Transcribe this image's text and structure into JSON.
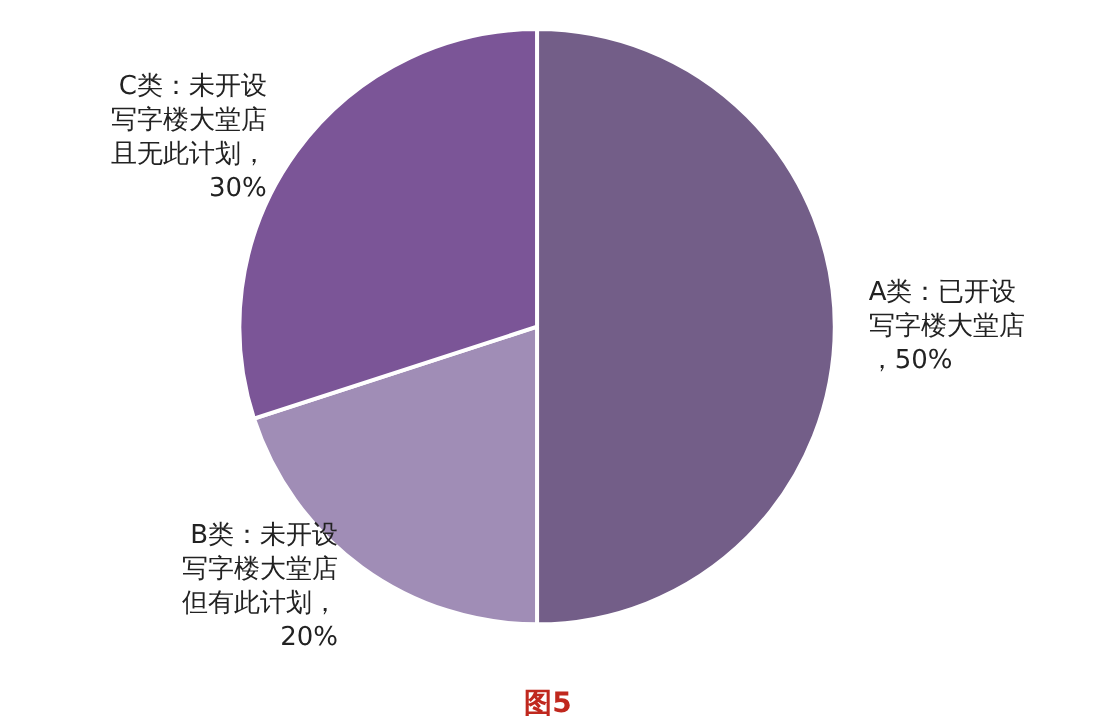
{
  "chart_data": {
    "type": "pie",
    "categories": [
      "A类：已开设写字楼大堂店",
      "B类：未开设写字楼大堂店但有此计划",
      "C类：未开设写字楼大堂店且无此计划"
    ],
    "values": [
      50,
      20,
      30
    ],
    "value_labels": [
      "，50%",
      "，20%",
      "，30%"
    ],
    "colors": [
      "#735e88",
      "#a08db6",
      "#7b5597"
    ],
    "annotations": [
      "图5"
    ]
  }
}
